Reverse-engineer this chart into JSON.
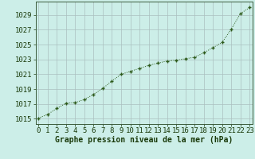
{
  "x": [
    0,
    1,
    2,
    3,
    4,
    5,
    6,
    7,
    8,
    9,
    10,
    11,
    12,
    13,
    14,
    15,
    16,
    17,
    18,
    19,
    20,
    21,
    22,
    23
  ],
  "y": [
    1015.1,
    1015.6,
    1016.4,
    1017.1,
    1017.2,
    1017.6,
    1018.3,
    1019.1,
    1020.1,
    1021.0,
    1021.4,
    1021.8,
    1022.2,
    1022.5,
    1022.8,
    1022.9,
    1023.1,
    1023.3,
    1023.9,
    1024.6,
    1025.3,
    1027.1,
    1029.2,
    1030.0
  ],
  "line_color": "#2d5a1b",
  "marker_color": "#2d5a1b",
  "bg_color": "#cceee8",
  "grid_color": "#aabfbf",
  "xlabel": "Graphe pression niveau de la mer (hPa)",
  "xlabel_color": "#1a3a0a",
  "ylabel_ticks": [
    1015,
    1017,
    1019,
    1021,
    1023,
    1025,
    1027,
    1029
  ],
  "xtick_labels": [
    "0",
    "1",
    "2",
    "3",
    "4",
    "5",
    "6",
    "7",
    "8",
    "9",
    "10",
    "11",
    "12",
    "13",
    "14",
    "15",
    "16",
    "17",
    "18",
    "19",
    "20",
    "21",
    "22",
    "23"
  ],
  "ylim": [
    1014.3,
    1030.8
  ],
  "xlim": [
    -0.3,
    23.3
  ],
  "font_size": 6.5
}
